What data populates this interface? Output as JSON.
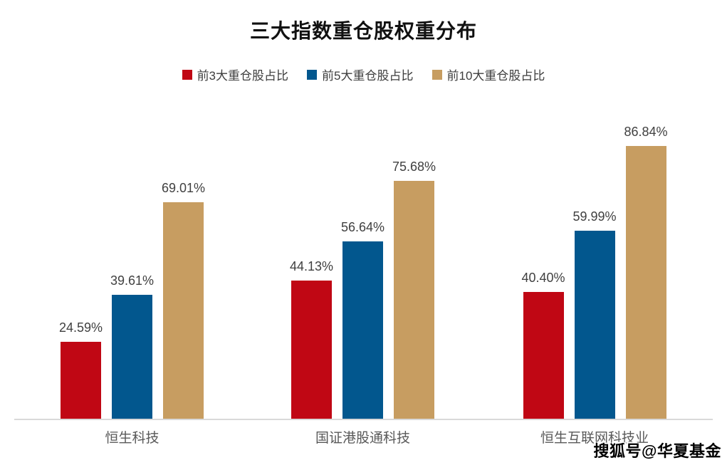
{
  "title": "三大指数重仓股权重分布",
  "legend": [
    {
      "label": "前3大重仓股占比",
      "color": "#c00714"
    },
    {
      "label": "前5大重仓股占比",
      "color": "#02578e"
    },
    {
      "label": "前10大重仓股占比",
      "color": "#c79d61"
    }
  ],
  "watermark": "搜狐号@华夏基金",
  "colors": {
    "axis_line": "#d9d9d9",
    "value_label_text": "#404040",
    "category_label_text": "#595959"
  },
  "chart_data": {
    "type": "bar",
    "title": "三大指数重仓股权重分布",
    "categories": [
      "恒生科技",
      "国证港股通科技",
      "恒生互联网科技业"
    ],
    "series": [
      {
        "name": "前3大重仓股占比",
        "color": "#c00714",
        "values": [
          24.59,
          44.13,
          40.4
        ]
      },
      {
        "name": "前5大重仓股占比",
        "color": "#02578e",
        "values": [
          39.61,
          56.64,
          59.99
        ]
      },
      {
        "name": "前10大重仓股占比",
        "color": "#c79d61",
        "values": [
          69.01,
          75.68,
          86.84
        ]
      }
    ],
    "value_label_format": "0.00%",
    "xlabel": "",
    "ylabel": "",
    "ylim": [
      0,
      100
    ],
    "grid": false,
    "legend_position": "top"
  }
}
